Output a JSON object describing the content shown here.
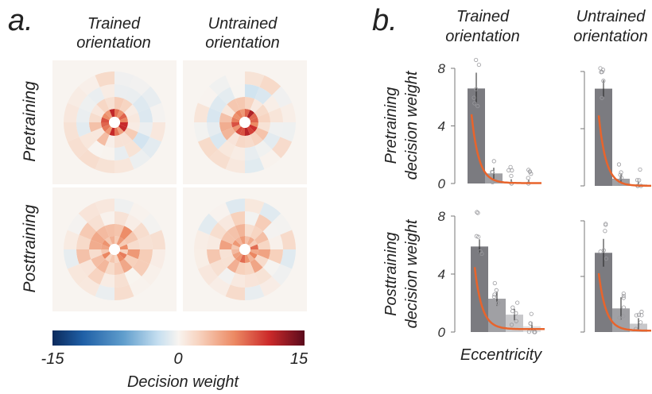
{
  "panel_a": {
    "label": "a.",
    "col_titles": [
      [
        "Trained",
        "orientation"
      ],
      [
        "Untrained",
        "orientation"
      ]
    ],
    "row_titles": [
      "Pretraining",
      "Posttraining"
    ],
    "colorbar": {
      "tick_labels": [
        "-15",
        "0",
        "15"
      ],
      "title": "Decision weight",
      "min": -15,
      "max": 15
    }
  },
  "panel_b": {
    "label": "b.",
    "col_titles": [
      [
        "Trained",
        "orientation"
      ],
      [
        "Untrained",
        "orientation"
      ]
    ],
    "row_titles": [
      [
        "Pretraining",
        "decision weight"
      ],
      [
        "Posttraining",
        "decision weight"
      ]
    ],
    "xlabel": "Eccentricity",
    "y_ticks": [
      "8",
      "4",
      "0"
    ]
  },
  "chart_data": [
    {
      "type": "heatmap",
      "layout": "2x2 grid of polar decision-weight maps",
      "rows": [
        "Pretraining",
        "Posttraining"
      ],
      "columns": [
        "Trained orientation",
        "Untrained orientation"
      ],
      "colorbar": {
        "label": "Decision weight",
        "range": [
          -15,
          15
        ],
        "colormap": "blue-white-red"
      },
      "rings_mean_weight": [
        [
          [
            9,
            3,
            -0.5,
            0.5
          ],
          [
            9.5,
            3.5,
            -0.5,
            0.5
          ]
        ],
        [
          [
            6,
            5,
            2.5,
            1
          ],
          [
            6.5,
            4,
            2,
            0.5
          ]
        ]
      ]
    },
    {
      "type": "bar",
      "xlabel": "Eccentricity",
      "ylabel": "decision weight",
      "ylim": [
        0,
        8
      ],
      "yticks": [
        0,
        4,
        8
      ],
      "panels": [
        {
          "row": "Pretraining",
          "column": "Trained orientation",
          "values": [
            6.6,
            0.7,
            0.1,
            0.05
          ],
          "errors": [
            1.1,
            0.4,
            0.2,
            0.2
          ]
        },
        {
          "row": "Pretraining",
          "column": "Untrained orientation",
          "values": [
            6.8,
            0.5,
            0.1,
            0.0
          ],
          "errors": [
            0.6,
            0.3,
            0.2,
            0.2
          ]
        },
        {
          "row": "Posttraining",
          "column": "Trained orientation",
          "values": [
            5.9,
            2.3,
            1.2,
            0.4
          ],
          "errors": [
            0.5,
            0.5,
            0.4,
            0.3
          ]
        },
        {
          "row": "Posttraining",
          "column": "Untrained orientation",
          "values": [
            5.7,
            1.7,
            0.6,
            0.2
          ],
          "errors": [
            1.0,
            0.8,
            0.4,
            0.3
          ]
        }
      ],
      "fit": "exponential decay"
    }
  ]
}
